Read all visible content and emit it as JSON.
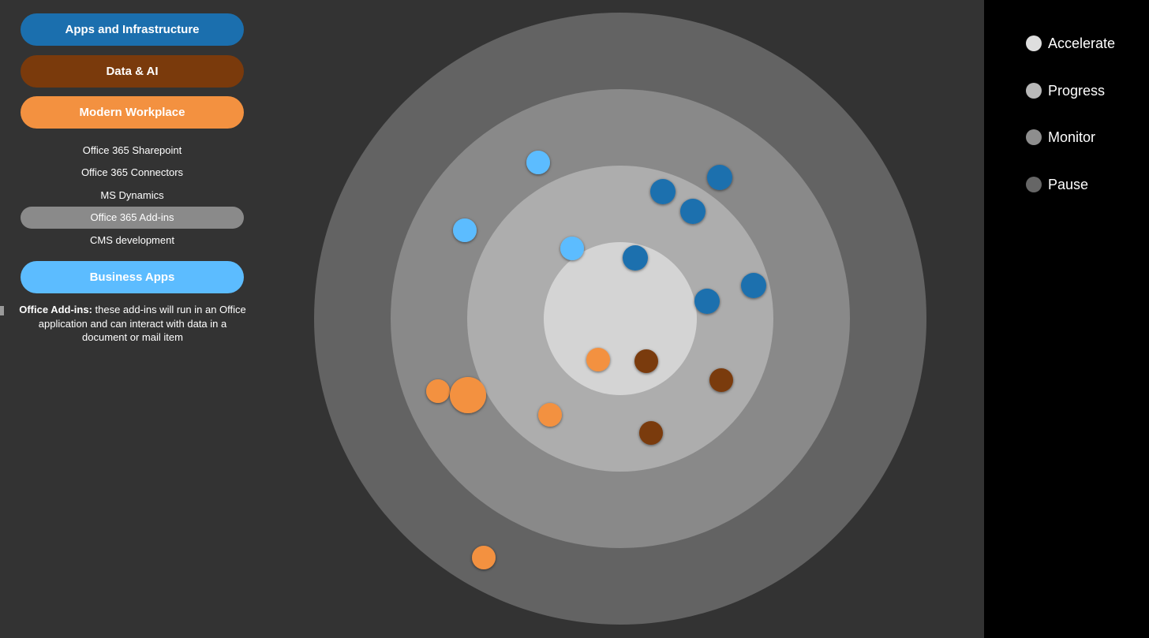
{
  "categories": [
    {
      "label": "Apps and Infrastructure",
      "color": "#1b6fae"
    },
    {
      "label": "Data & AI",
      "color": "#7a3a0c"
    },
    {
      "label": "Modern Workplace",
      "color": "#f39140"
    },
    {
      "label": "Business Apps",
      "color": "#5cbcff"
    }
  ],
  "modern_workplace_items": [
    {
      "label": "Office 365 Sharepoint",
      "selected": false
    },
    {
      "label": "Office 365 Connectors",
      "selected": false
    },
    {
      "label": "MS Dynamics",
      "selected": false
    },
    {
      "label": "Office 365 Add-ins",
      "selected": true
    },
    {
      "label": "CMS development",
      "selected": false
    }
  ],
  "description": {
    "term": "Office Add-ins:",
    "text": " these add-ins will run in an Office application and can interact with data in a document or mail item"
  },
  "legend": [
    {
      "label": "Accelerate",
      "color": "#dedede"
    },
    {
      "label": "Progress",
      "color": "#b8b8b8"
    },
    {
      "label": "Monitor",
      "color": "#8e8e8e"
    },
    {
      "label": "Pause",
      "color": "#666666"
    }
  ],
  "ring_colors": [
    "#636363",
    "#898989",
    "#adadad",
    "#d4d4d4"
  ],
  "blips": [
    {
      "category": "Business Apps",
      "color": "#5cbcff"
    },
    {
      "category": "Business Apps",
      "color": "#5cbcff"
    },
    {
      "category": "Business Apps",
      "color": "#5cbcff"
    },
    {
      "category": "Apps and Infrastructure",
      "color": "#1b6fae"
    },
    {
      "category": "Apps and Infrastructure",
      "color": "#1b6fae"
    },
    {
      "category": "Apps and Infrastructure",
      "color": "#1b6fae"
    },
    {
      "category": "Apps and Infrastructure",
      "color": "#1b6fae"
    },
    {
      "category": "Apps and Infrastructure",
      "color": "#1b6fae"
    },
    {
      "category": "Apps and Infrastructure",
      "color": "#1b6fae"
    },
    {
      "category": "Modern Workplace",
      "color": "#f39140"
    },
    {
      "category": "Modern Workplace",
      "color": "#f39140"
    },
    {
      "category": "Modern Workplace",
      "color": "#f39140"
    },
    {
      "category": "Modern Workplace",
      "color": "#f39140",
      "highlighted": true
    },
    {
      "category": "Modern Workplace",
      "color": "#f39140"
    },
    {
      "category": "Data & AI",
      "color": "#7a3a0c"
    },
    {
      "category": "Data & AI",
      "color": "#7a3a0c"
    },
    {
      "category": "Data & AI",
      "color": "#7a3a0c"
    }
  ]
}
